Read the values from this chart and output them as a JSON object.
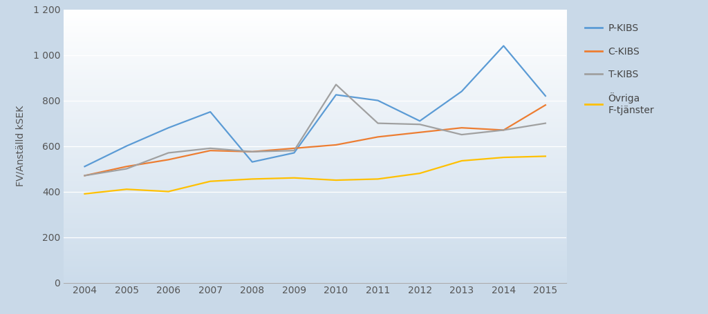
{
  "years": [
    2004,
    2005,
    2006,
    2007,
    2008,
    2009,
    2010,
    2011,
    2012,
    2013,
    2014,
    2015
  ],
  "p_kibs": [
    510,
    600,
    680,
    750,
    530,
    570,
    825,
    800,
    710,
    840,
    1040,
    820
  ],
  "c_kibs": [
    470,
    510,
    540,
    580,
    575,
    590,
    605,
    640,
    660,
    680,
    670,
    780
  ],
  "t_kibs": [
    470,
    500,
    570,
    590,
    575,
    580,
    870,
    700,
    695,
    650,
    670,
    700
  ],
  "ovriga": [
    390,
    410,
    400,
    445,
    455,
    460,
    450,
    455,
    480,
    535,
    550,
    555
  ],
  "p_color": "#5B9BD5",
  "c_color": "#ED7D31",
  "t_color": "#A0A0A0",
  "o_color": "#FFC000",
  "ylabel": "FV/Anställd kSEK",
  "ylim": [
    0,
    1200
  ],
  "yticks": [
    0,
    200,
    400,
    600,
    800,
    1000,
    1200
  ],
  "fig_bg": "#C9D9E8",
  "legend_labels": [
    "P-KIBS",
    "C-KIBS",
    "T-KIBS",
    "Övriga\nF-tjänster"
  ],
  "tick_fontsize": 10,
  "axis_fontsize": 10,
  "legend_fontsize": 10
}
